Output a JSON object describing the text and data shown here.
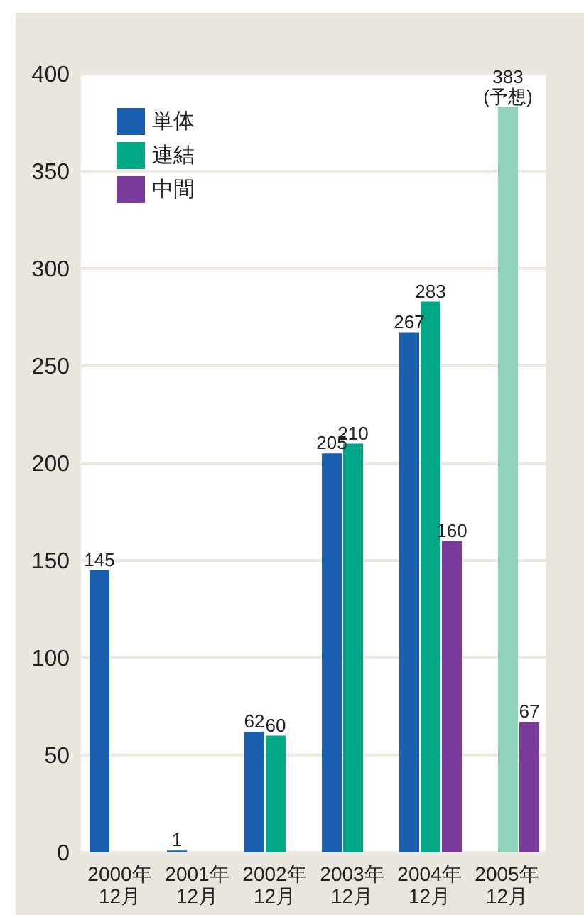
{
  "chart_data": {
    "type": "bar",
    "categories": [
      "2000年\n12月",
      "2001年\n12月",
      "2002年\n12月",
      "2003年\n12月",
      "2004年\n12月",
      "2005年\n12月"
    ],
    "series": [
      {
        "name": "単体",
        "color": "#1a5fb0",
        "values": [
          145,
          1,
          62,
          205,
          267,
          null
        ],
        "value_labels": [
          "145",
          "1",
          "62",
          "205",
          "267",
          null
        ]
      },
      {
        "name": "連結",
        "color": "#00a887",
        "colors": [
          "#00a887",
          "#00a887",
          "#00a887",
          "#00a887",
          "#00a887",
          "#8fd3bd"
        ],
        "values": [
          null,
          null,
          60,
          210,
          283,
          383
        ],
        "value_labels": [
          null,
          null,
          "60",
          "210",
          "283",
          "383\n(予想)"
        ]
      },
      {
        "name": "中間",
        "color": "#7a3a9a",
        "values": [
          null,
          null,
          null,
          null,
          160,
          67
        ],
        "value_labels": [
          null,
          null,
          null,
          null,
          "160",
          "67"
        ]
      }
    ],
    "ylim": [
      0,
      400
    ],
    "yticks": [
      0,
      50,
      100,
      150,
      200,
      250,
      300,
      350,
      400
    ],
    "grid": "y",
    "legend": "top left"
  }
}
